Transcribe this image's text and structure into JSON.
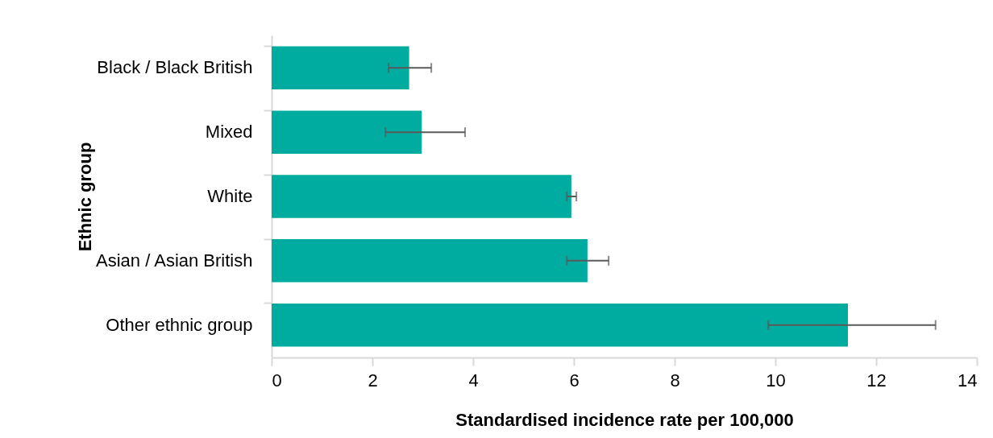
{
  "chart_data": {
    "type": "bar",
    "orientation": "horizontal",
    "xlabel": "Standardised incidence rate per 100,000",
    "ylabel": "Ethnic group",
    "categories": [
      "Black / Black British",
      "Mixed",
      "White",
      "Asian / Asian British",
      "Other ethnic group"
    ],
    "values": [
      2.73,
      2.98,
      5.95,
      6.27,
      11.44
    ],
    "errors": [
      [
        2.32,
        3.17
      ],
      [
        2.26,
        3.84
      ],
      [
        5.86,
        6.05
      ],
      [
        5.86,
        6.69
      ],
      [
        9.86,
        13.18
      ]
    ],
    "color": "#00ab9f",
    "xlim": [
      0,
      14
    ],
    "xticks": [
      0,
      2,
      4,
      6,
      8,
      10,
      12,
      14
    ],
    "grid": false
  }
}
